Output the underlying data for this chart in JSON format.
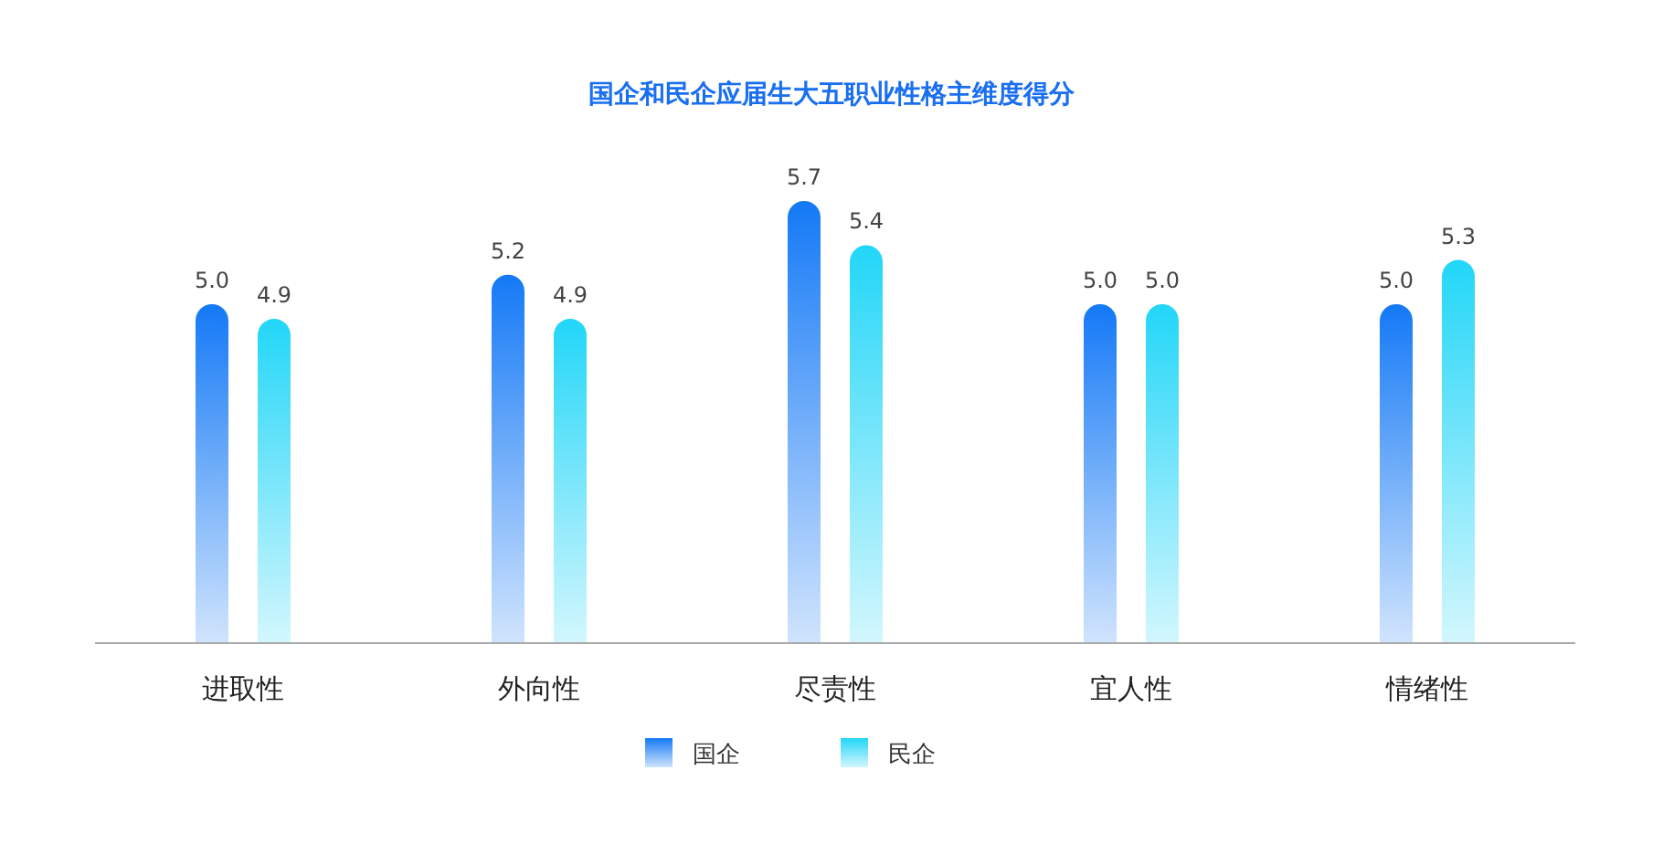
{
  "chart_data": {
    "type": "bar",
    "title": "国企和民企应届生大五职业性格主维度得分",
    "categories": [
      "进取性",
      "外向性",
      "尽责性",
      "宜人性",
      "情绪性"
    ],
    "series": [
      {
        "name": "国企",
        "color": "#1479f6",
        "values": [
          5.0,
          5.2,
          5.7,
          5.0,
          5.0
        ],
        "value_labels": [
          "5.0",
          "5.2",
          "5.7",
          "5.0",
          "5.0"
        ]
      },
      {
        "name": "民企",
        "color": "#22d6f8",
        "values": [
          4.9,
          4.9,
          5.4,
          5.0,
          5.3
        ],
        "value_labels": [
          "4.9",
          "4.9",
          "5.4",
          "5.0",
          "5.3"
        ]
      }
    ],
    "ylim": [
      2.7,
      5.7
    ],
    "tick_labels": "x",
    "legend": "bottom"
  }
}
